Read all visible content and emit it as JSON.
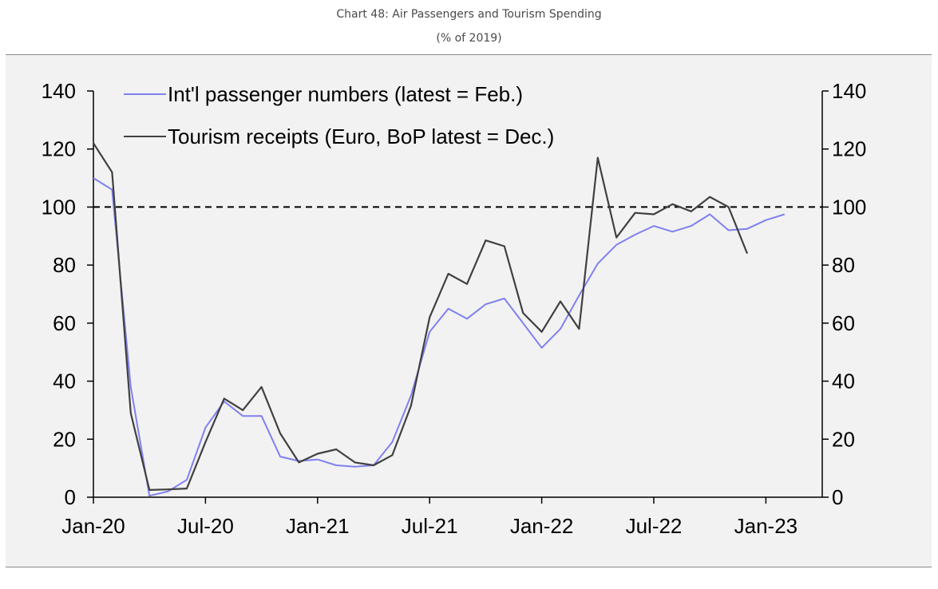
{
  "header": {
    "title": "Chart 48: Air Passengers and Tourism Spending",
    "subtitle": "(% of 2019)"
  },
  "chart_data": {
    "type": "line",
    "title": "Chart 48: Air Passengers and Tourism Spending",
    "subtitle": "(% of 2019)",
    "x_start": "2020-01",
    "xticks": [
      "Jan-20",
      "Jul-20",
      "Jan-21",
      "Jul-21",
      "Jan-22",
      "Jul-22",
      "Jan-23"
    ],
    "ylim": [
      0,
      140
    ],
    "yticks": [
      0,
      20,
      40,
      60,
      80,
      100,
      120,
      140
    ],
    "y2ticks": [
      0,
      20,
      40,
      60,
      80,
      100,
      120,
      140
    ],
    "reference_line": {
      "y": 100,
      "style": "dashed",
      "color": "#000000"
    },
    "legend_position": "top-left",
    "series": [
      {
        "name": "Int'l passenger numbers (latest = Feb.)",
        "color": "#8080f0",
        "x": [
          "2020-01",
          "2020-02",
          "2020-03",
          "2020-04",
          "2020-05",
          "2020-06",
          "2020-07",
          "2020-08",
          "2020-09",
          "2020-10",
          "2020-11",
          "2020-12",
          "2021-01",
          "2021-02",
          "2021-03",
          "2021-04",
          "2021-05",
          "2021-06",
          "2021-07",
          "2021-08",
          "2021-09",
          "2021-10",
          "2021-11",
          "2021-12",
          "2022-01",
          "2022-02",
          "2022-03",
          "2022-04",
          "2022-05",
          "2022-06",
          "2022-07",
          "2022-08",
          "2022-09",
          "2022-10",
          "2022-11",
          "2022-12",
          "2023-01",
          "2023-02"
        ],
        "values": [
          110,
          106,
          38,
          0.5,
          2,
          6,
          24,
          33,
          28,
          28,
          14,
          12.5,
          13,
          11,
          10.5,
          11,
          19,
          35,
          57,
          65,
          61.5,
          66.5,
          68.5,
          60,
          51.5,
          58,
          69.5,
          80.5,
          87,
          90.5,
          93.5,
          91.5,
          93.5,
          97.5,
          92,
          92.5,
          95.5,
          97.5
        ]
      },
      {
        "name": "Tourism receipts (Euro, BoP latest = Dec.)",
        "color": "#404040",
        "x": [
          "2020-01",
          "2020-02",
          "2020-03",
          "2020-04",
          "2020-05",
          "2020-06",
          "2020-07",
          "2020-08",
          "2020-09",
          "2020-10",
          "2020-11",
          "2020-12",
          "2021-01",
          "2021-02",
          "2021-03",
          "2021-04",
          "2021-05",
          "2021-06",
          "2021-07",
          "2021-08",
          "2021-09",
          "2021-10",
          "2021-11",
          "2021-12",
          "2022-01",
          "2022-02",
          "2022-03",
          "2022-04",
          "2022-05",
          "2022-06",
          "2022-07",
          "2022-08",
          "2022-09",
          "2022-10",
          "2022-11",
          "2022-12"
        ],
        "values": [
          122,
          112,
          29,
          2.5,
          2.7,
          3,
          19,
          34,
          30,
          38,
          22,
          12,
          15,
          16.5,
          12,
          11,
          14.5,
          31.5,
          62,
          77,
          73.5,
          88.5,
          86.5,
          63.5,
          57,
          67.5,
          58,
          117,
          89.5,
          98,
          97.5,
          101,
          98.5,
          103.5,
          100,
          84
        ]
      }
    ]
  }
}
